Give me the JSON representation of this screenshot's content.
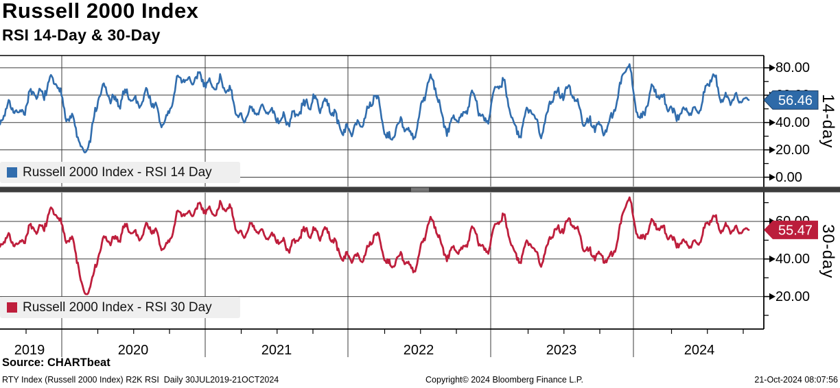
{
  "window": {
    "title": "Russell 2000 Index"
  },
  "header": {
    "title": "Russell 2000 Index",
    "subtitle": "RSI 14-Day & 30-Day"
  },
  "source_line": "Source: CHARTbeat",
  "footer": {
    "left": "RTY Index (Russell 2000 Index) R2K RSI  Daily 30JUL2019-21OCT2024",
    "center": "Copyright© 2024 Bloomberg Finance L.P.",
    "right": "21-Oct-2024 08:07:56"
  },
  "colors": {
    "rsi14_line": "#316DAD",
    "rsi14_badge": "#2E6AA8",
    "rsi30_line": "#BE1E3C",
    "rsi30_badge": "#BB1D3B",
    "grid": "#3a3a3a",
    "axis": "#000000",
    "legend_bg": "#efefef",
    "splitter": "#3d3d3d",
    "badge_text": "#ffffff"
  },
  "chart_data": {
    "type": "line",
    "title": "Russell 2000 Index",
    "subtitle": "RSI 14-Day & 30-Day",
    "x_axis": {
      "tick_labels": [
        "2019",
        "2020",
        "2021",
        "2022",
        "2023",
        "2024"
      ],
      "range_label": "30JUL2019-21OCT2024",
      "minor_ticks": "quarterly",
      "grid": true
    },
    "layout_hints": {
      "panels_stacked": 2,
      "legend_position": "bottom-left inside panel",
      "value_badge": "right axis",
      "grid": true
    },
    "sample_months": [
      "2019-08",
      "2019-09",
      "2019-10",
      "2019-11",
      "2019-12",
      "2020-01",
      "2020-02",
      "2020-03",
      "2020-04",
      "2020-05",
      "2020-06",
      "2020-07",
      "2020-08",
      "2020-09",
      "2020-10",
      "2020-11",
      "2020-12",
      "2021-01",
      "2021-02",
      "2021-03",
      "2021-04",
      "2021-05",
      "2021-06",
      "2021-07",
      "2021-08",
      "2021-09",
      "2021-10",
      "2021-11",
      "2021-12",
      "2022-01",
      "2022-02",
      "2022-03",
      "2022-04",
      "2022-05",
      "2022-06",
      "2022-07",
      "2022-08",
      "2022-09",
      "2022-10",
      "2022-11",
      "2022-12",
      "2023-01",
      "2023-02",
      "2023-03",
      "2023-04",
      "2023-05",
      "2023-06",
      "2023-07",
      "2023-08",
      "2023-09",
      "2023-10",
      "2023-11",
      "2023-12",
      "2024-01",
      "2024-02",
      "2024-03",
      "2024-04",
      "2024-05",
      "2024-06",
      "2024-07",
      "2024-08",
      "2024-09",
      "2024-10"
    ],
    "panels": [
      {
        "id": "rsi14",
        "side_label": "14-day",
        "legend": "Russell 2000 Index - RSI 14 Day",
        "color": "#316DAD",
        "badge_color": "#2E6AA8",
        "last_value": 56.46,
        "last_value_label": "56.46",
        "y_tick_values": [
          0,
          20,
          40,
          60,
          80
        ],
        "y_tick_labels": [
          "0.00",
          "20.00",
          "40.00",
          "60.00",
          "80.00"
        ],
        "ylim": [
          0,
          90
        ],
        "monthly_values": [
          38,
          55,
          47,
          63,
          65,
          62,
          40,
          18,
          52,
          60,
          58,
          55,
          62,
          44,
          50,
          70,
          74,
          66,
          73,
          57,
          48,
          42,
          55,
          38,
          48,
          45,
          60,
          48,
          45,
          30,
          44,
          55,
          34,
          36,
          32,
          52,
          70,
          34,
          44,
          58,
          40,
          65,
          58,
          34,
          46,
          40,
          58,
          68,
          44,
          44,
          30,
          58,
          76,
          48,
          58,
          62,
          40,
          55,
          46,
          78,
          52,
          60,
          56.46
        ]
      },
      {
        "id": "rsi30",
        "side_label": "30-day",
        "legend": "Russell 2000 Index - RSI 30 Day",
        "color": "#BE1E3C",
        "badge_color": "#BB1D3B",
        "last_value": 55.47,
        "last_value_label": "55.47",
        "y_tick_values": [
          20,
          40,
          60
        ],
        "y_tick_labels": [
          "20.00",
          "40.00",
          "60.00"
        ],
        "ylim": [
          0,
          77
        ],
        "monthly_values": [
          46,
          52,
          49,
          57,
          61,
          60,
          48,
          22,
          38,
          50,
          54,
          53,
          57,
          50,
          51,
          63,
          67,
          64,
          69,
          63,
          56,
          53,
          56,
          47,
          50,
          50,
          57,
          51,
          48,
          38,
          43,
          50,
          41,
          39,
          36,
          47,
          60,
          41,
          45,
          54,
          44,
          58,
          56,
          41,
          46,
          43,
          53,
          62,
          49,
          46,
          37,
          50,
          68,
          54,
          55,
          59,
          45,
          52,
          47,
          65,
          53,
          57,
          55.47
        ]
      }
    ]
  }
}
